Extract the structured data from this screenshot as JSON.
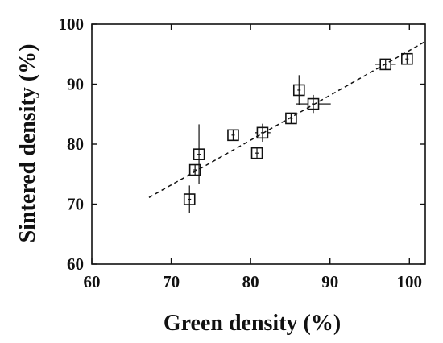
{
  "chart_data": {
    "type": "scatter",
    "xlabel": "Green  density (%)",
    "ylabel": "Sintered  density (%)",
    "xlim": [
      60,
      102
    ],
    "ylim": [
      60,
      100
    ],
    "xticks": [
      60,
      70,
      80,
      90,
      100
    ],
    "yticks": [
      60,
      70,
      80,
      90,
      100
    ],
    "grid": false,
    "marker": "open-square",
    "points": [
      {
        "x": 72.3,
        "y": 70.8,
        "yerr": [
          2.3,
          2.3
        ],
        "xerr": [
          0,
          0
        ]
      },
      {
        "x": 73.0,
        "y": 75.7,
        "yerr": [
          0.5,
          0.5
        ],
        "xerr": [
          0,
          0
        ]
      },
      {
        "x": 73.5,
        "y": 78.3,
        "yerr": [
          5.0,
          5.0
        ],
        "xerr": [
          0,
          0
        ]
      },
      {
        "x": 77.8,
        "y": 81.5,
        "yerr": [
          0.4,
          0.4
        ],
        "xerr": [
          0,
          0
        ]
      },
      {
        "x": 80.8,
        "y": 78.5,
        "yerr": [
          0.4,
          0.4
        ],
        "xerr": [
          0,
          0
        ]
      },
      {
        "x": 81.5,
        "y": 81.9,
        "yerr": [
          1.5,
          1.5
        ],
        "xerr": [
          1.0,
          1.0
        ]
      },
      {
        "x": 85.1,
        "y": 84.3,
        "yerr": [
          0.5,
          0.5
        ],
        "xerr": [
          0,
          0
        ]
      },
      {
        "x": 86.1,
        "y": 89.0,
        "yerr": [
          2.5,
          2.5
        ],
        "xerr": [
          0.6,
          0.6
        ]
      },
      {
        "x": 87.9,
        "y": 86.7,
        "yerr": [
          1.5,
          1.5
        ],
        "xerr": [
          2.2,
          2.2
        ]
      },
      {
        "x": 97.0,
        "y": 93.3,
        "yerr": [
          0.4,
          0.4
        ],
        "xerr": [
          1.3,
          1.3
        ]
      },
      {
        "x": 99.7,
        "y": 94.2,
        "yerr": [
          0.3,
          0.3
        ],
        "xerr": [
          0,
          0
        ]
      }
    ],
    "fit_line": {
      "style": "dashed",
      "x": [
        67.2,
        102
      ],
      "y": [
        71.1,
        97.1
      ]
    }
  }
}
